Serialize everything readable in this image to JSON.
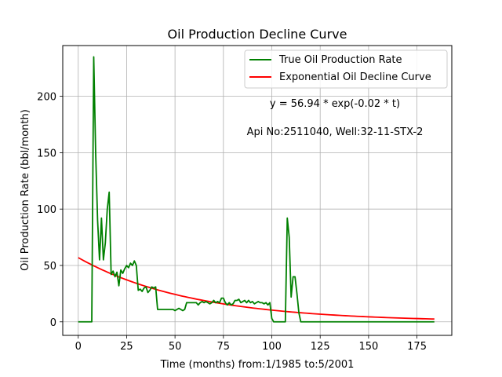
{
  "chart_data": {
    "type": "line",
    "title": "Oil Production Decline Curve",
    "xlabel": "Time (months) from:1/1985 to:5/2001",
    "ylabel": "Oil Production Rate (bbl/month)",
    "xlim": [
      -8,
      193
    ],
    "ylim": [
      -12,
      245
    ],
    "xticks": [
      0,
      25,
      50,
      75,
      100,
      125,
      150,
      175
    ],
    "yticks": [
      0,
      50,
      100,
      150,
      200
    ],
    "grid": true,
    "legend_position": "top-right",
    "annotations": [
      "y = 56.94 * exp(-0.02 * t)",
      "Api No:2511040, Well:32-11-STX-2"
    ],
    "series": [
      {
        "name": "True Oil Production Rate",
        "color": "#008000",
        "points": [
          [
            0,
            0
          ],
          [
            1,
            0
          ],
          [
            2,
            0
          ],
          [
            3,
            0
          ],
          [
            4,
            0
          ],
          [
            5,
            0
          ],
          [
            6,
            0
          ],
          [
            7,
            0
          ],
          [
            8,
            235
          ],
          [
            9,
            150
          ],
          [
            10,
            90
          ],
          [
            11,
            55
          ],
          [
            12,
            92
          ],
          [
            13,
            55
          ],
          [
            14,
            70
          ],
          [
            15,
            100
          ],
          [
            16,
            115
          ],
          [
            17,
            42
          ],
          [
            18,
            45
          ],
          [
            19,
            40
          ],
          [
            20,
            44
          ],
          [
            21,
            32
          ],
          [
            22,
            46
          ],
          [
            23,
            43
          ],
          [
            24,
            47
          ],
          [
            25,
            50
          ],
          [
            26,
            48
          ],
          [
            27,
            52
          ],
          [
            28,
            50
          ],
          [
            29,
            54
          ],
          [
            30,
            50
          ],
          [
            31,
            28
          ],
          [
            32,
            29
          ],
          [
            33,
            27
          ],
          [
            34,
            30
          ],
          [
            35,
            31
          ],
          [
            36,
            26
          ],
          [
            37,
            28
          ],
          [
            38,
            31
          ],
          [
            39,
            30
          ],
          [
            40,
            31
          ],
          [
            41,
            11
          ],
          [
            42,
            11
          ],
          [
            43,
            11
          ],
          [
            44,
            11
          ],
          [
            45,
            11
          ],
          [
            46,
            11
          ],
          [
            47,
            11
          ],
          [
            48,
            11
          ],
          [
            49,
            11
          ],
          [
            50,
            10
          ],
          [
            51,
            11
          ],
          [
            52,
            12
          ],
          [
            53,
            11
          ],
          [
            54,
            10
          ],
          [
            55,
            11
          ],
          [
            56,
            17
          ],
          [
            57,
            17
          ],
          [
            58,
            17
          ],
          [
            59,
            17
          ],
          [
            60,
            17
          ],
          [
            61,
            17
          ],
          [
            62,
            15
          ],
          [
            63,
            17
          ],
          [
            64,
            18
          ],
          [
            65,
            17
          ],
          [
            66,
            18
          ],
          [
            67,
            17
          ],
          [
            68,
            16
          ],
          [
            69,
            17
          ],
          [
            70,
            19
          ],
          [
            71,
            17
          ],
          [
            72,
            18
          ],
          [
            73,
            17
          ],
          [
            74,
            21
          ],
          [
            75,
            21
          ],
          [
            76,
            17
          ],
          [
            77,
            15
          ],
          [
            78,
            17
          ],
          [
            79,
            15
          ],
          [
            80,
            16
          ],
          [
            81,
            19
          ],
          [
            82,
            19
          ],
          [
            83,
            20
          ],
          [
            84,
            17
          ],
          [
            85,
            18
          ],
          [
            86,
            19
          ],
          [
            87,
            17
          ],
          [
            88,
            19
          ],
          [
            89,
            17
          ],
          [
            90,
            18
          ],
          [
            91,
            16
          ],
          [
            92,
            17
          ],
          [
            93,
            18
          ],
          [
            94,
            17
          ],
          [
            95,
            17
          ],
          [
            96,
            16
          ],
          [
            97,
            17
          ],
          [
            98,
            15
          ],
          [
            99,
            17
          ],
          [
            100,
            3
          ],
          [
            101,
            0
          ],
          [
            102,
            0
          ],
          [
            103,
            0
          ],
          [
            104,
            0
          ],
          [
            105,
            0
          ],
          [
            106,
            0
          ],
          [
            107,
            0
          ],
          [
            108,
            92
          ],
          [
            109,
            75
          ],
          [
            110,
            22
          ],
          [
            111,
            40
          ],
          [
            112,
            40
          ],
          [
            113,
            25
          ],
          [
            114,
            8
          ],
          [
            115,
            0
          ],
          [
            116,
            0
          ],
          [
            120,
            0
          ],
          [
            125,
            0
          ],
          [
            130,
            0
          ],
          [
            135,
            0
          ],
          [
            140,
            0
          ],
          [
            145,
            0
          ],
          [
            150,
            0
          ],
          [
            155,
            0
          ],
          [
            160,
            0
          ],
          [
            165,
            0
          ],
          [
            170,
            0
          ],
          [
            175,
            0
          ],
          [
            180,
            0
          ],
          [
            184,
            0
          ]
        ]
      },
      {
        "name": "Exponential Oil Decline Curve",
        "color": "#ff0000",
        "equation": {
          "a": 56.94,
          "b": -0.017,
          "x_start": 0,
          "x_end": 184
        }
      }
    ]
  }
}
